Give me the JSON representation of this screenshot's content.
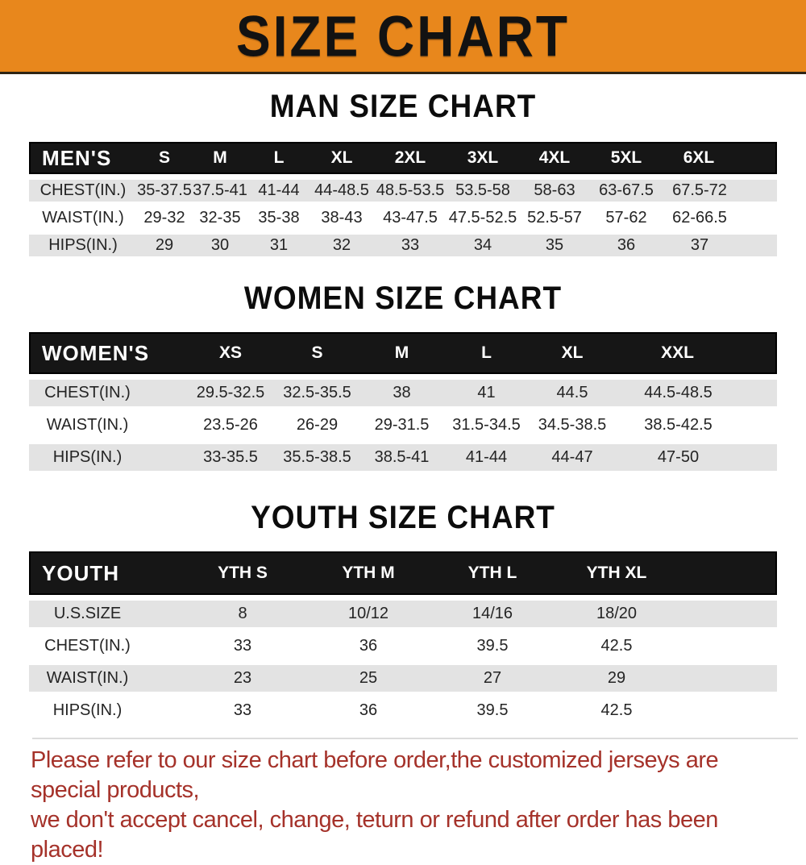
{
  "banner": {
    "title": "SIZE CHART"
  },
  "colors": {
    "accent": "#E8871C",
    "header_black": "#161616",
    "row_gray": "#E3E3E3",
    "disclaimer_red": "#A5322A"
  },
  "sections": [
    {
      "id": "men",
      "heading": "MAN SIZE CHART",
      "header_label": "MEN'S",
      "columns": [
        "S",
        "M",
        "L",
        "XL",
        "2XL",
        "3XL",
        "4XL",
        "5XL",
        "6XL"
      ],
      "rows": [
        {
          "label": "CHEST(IN.)",
          "values": [
            "35-37.5",
            "37.5-41",
            "41-44",
            "44-48.5",
            "48.5-53.5",
            "53.5-58",
            "58-63",
            "63-67.5",
            "67.5-72"
          ]
        },
        {
          "label": "WAIST(IN.)",
          "values": [
            "29-32",
            "32-35",
            "35-38",
            "38-43",
            "43-47.5",
            "47.5-52.5",
            "52.5-57",
            "57-62",
            "62-66.5"
          ]
        },
        {
          "label": "HIPS(IN.)",
          "values": [
            "29",
            "30",
            "31",
            "32",
            "33",
            "34",
            "35",
            "36",
            "37"
          ]
        }
      ]
    },
    {
      "id": "women",
      "heading": "WOMEN SIZE CHART",
      "header_label": "WOMEN'S",
      "columns": [
        "XS",
        "S",
        "M",
        "L",
        "XL",
        "XXL"
      ],
      "rows": [
        {
          "label": "CHEST(IN.)",
          "values": [
            "29.5-32.5",
            "32.5-35.5",
            "38",
            "41",
            "44.5",
            "44.5-48.5"
          ]
        },
        {
          "label": "WAIST(IN.)",
          "values": [
            "23.5-26",
            "26-29",
            "29-31.5",
            "31.5-34.5",
            "34.5-38.5",
            "38.5-42.5"
          ]
        },
        {
          "label": "HIPS(IN.)",
          "values": [
            "33-35.5",
            "35.5-38.5",
            "38.5-41",
            "41-44",
            "44-47",
            "47-50"
          ]
        }
      ]
    },
    {
      "id": "youth",
      "heading": "YOUTH SIZE CHART",
      "header_label": "YOUTH",
      "columns": [
        "YTH S",
        "YTH M",
        "YTH L",
        "YTH XL"
      ],
      "rows": [
        {
          "label": "U.S.SIZE",
          "values": [
            "8",
            "10/12",
            "14/16",
            "18/20"
          ]
        },
        {
          "label": "CHEST(IN.)",
          "values": [
            "33",
            "36",
            "39.5",
            "42.5"
          ]
        },
        {
          "label": "WAIST(IN.)",
          "values": [
            "23",
            "25",
            "27",
            "29"
          ]
        },
        {
          "label": "HIPS(IN.)",
          "values": [
            "33",
            "36",
            "39.5",
            "42.5"
          ]
        }
      ]
    }
  ],
  "disclaimer": {
    "line1": "Please refer to our size chart before order,the customized jerseys are special products,",
    "line2": "we don't accept cancel, change, teturn or refund after order has been placed!"
  }
}
